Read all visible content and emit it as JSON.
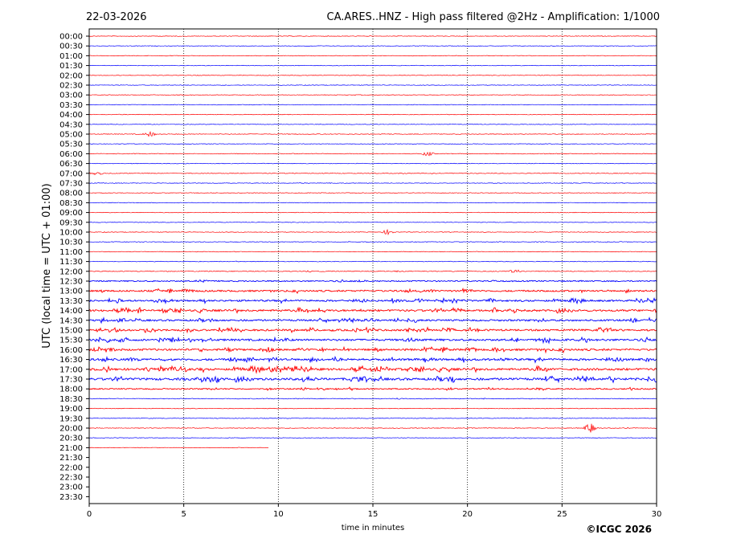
{
  "header": {
    "date": "22-03-2026",
    "title": "CA.ARES..HNZ - High pass filtered @2Hz - Amplification: 1/1000"
  },
  "copyright": "©ICGC 2026",
  "colors": {
    "odd_trace": "#ff0000",
    "even_trace": "#0000ff",
    "grid": "#000000"
  },
  "chart_data": {
    "type": "line",
    "xlabel": "time in minutes",
    "ylabel": "UTC (local time = UTC + 01:00)",
    "xlim": [
      0,
      30
    ],
    "x_ticks": [
      "0",
      "5",
      "10",
      "15",
      "20",
      "25",
      "30"
    ],
    "grid": "vertical dotted at every 5 minutes",
    "row_labels": [
      "00:00",
      "00:30",
      "01:00",
      "01:30",
      "02:00",
      "02:30",
      "03:00",
      "03:30",
      "04:00",
      "04:30",
      "05:00",
      "05:30",
      "06:00",
      "06:30",
      "07:00",
      "07:30",
      "08:00",
      "08:30",
      "09:00",
      "09:30",
      "10:00",
      "10:30",
      "11:00",
      "11:30",
      "12:00",
      "12:30",
      "13:00",
      "13:30",
      "14:00",
      "14:30",
      "15:00",
      "15:30",
      "16:00",
      "16:30",
      "17:00",
      "17:30",
      "18:00",
      "18:30",
      "19:00",
      "19:30",
      "20:00",
      "20:30",
      "21:00",
      "21:30",
      "22:00",
      "22:30",
      "23:00",
      "23:30"
    ],
    "trace_colors": "alternating red/blue starting with red at 00:00",
    "trace_activity": [
      0.05,
      0.05,
      0.05,
      0.05,
      0.05,
      0.05,
      0.05,
      0.05,
      0.05,
      0.05,
      0.12,
      0.05,
      0.1,
      0.05,
      0.1,
      0.08,
      0.06,
      0.05,
      0.05,
      0.05,
      0.06,
      0.1,
      0.06,
      0.08,
      0.15,
      0.35,
      0.55,
      0.6,
      0.7,
      0.6,
      0.65,
      0.7,
      0.7,
      0.75,
      0.8,
      0.85,
      0.35,
      0.12,
      0.08,
      0.06,
      0.1,
      0.04,
      0.03,
      0,
      0,
      0,
      0,
      0
    ],
    "trace_end_minutes": [
      30,
      30,
      30,
      30,
      30,
      30,
      30,
      30,
      30,
      30,
      30,
      30,
      30,
      30,
      30,
      30,
      30,
      30,
      30,
      30,
      30,
      30,
      30,
      30,
      30,
      30,
      30,
      30,
      30,
      30,
      30,
      30,
      30,
      30,
      30,
      30,
      30,
      30,
      30,
      30,
      30,
      30,
      9.5,
      0,
      0,
      0,
      0,
      0
    ],
    "notable_events": [
      {
        "row": 10,
        "minute": 3.2,
        "amp": 0.3
      },
      {
        "row": 12,
        "minute": 17.9,
        "amp": 0.25
      },
      {
        "row": 14,
        "minute": 0.4,
        "amp": 0.2
      },
      {
        "row": 20,
        "minute": 15.8,
        "amp": 0.3
      },
      {
        "row": 24,
        "minute": 22.6,
        "amp": 0.35
      },
      {
        "row": 40,
        "minute": 26.5,
        "amp": 0.6
      }
    ]
  }
}
